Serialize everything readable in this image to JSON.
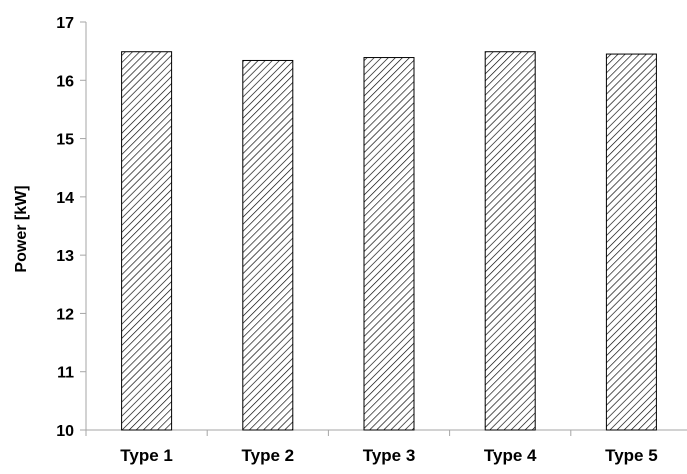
{
  "chart_data": {
    "type": "bar",
    "categories": [
      "Type 1",
      "Type 2",
      "Type 3",
      "Type 4",
      "Type 5"
    ],
    "values": [
      16.49,
      16.34,
      16.39,
      16.49,
      16.45
    ],
    "title": "",
    "xlabel": "",
    "ylabel": "Power [kW]",
    "ylim": [
      10,
      17
    ],
    "yticks": [
      "10",
      "11",
      "12",
      "13",
      "14",
      "15",
      "16",
      "17"
    ],
    "grid": false,
    "legend": "none",
    "bar_fill": "diagonal-hatch",
    "colors": {
      "bar_stroke": "#000000",
      "hatch": "#000000",
      "bar_background": "#ffffff",
      "axis": "#a6a6a6"
    }
  }
}
